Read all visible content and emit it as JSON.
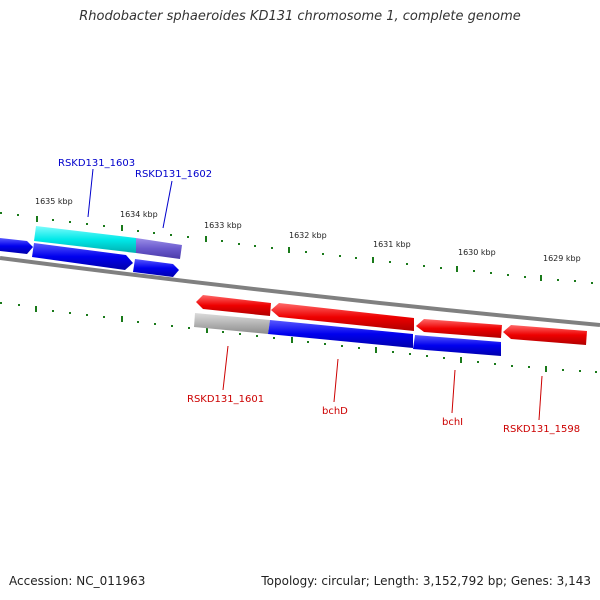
{
  "title": "Rhodobacter sphaeroides KD131 chromosome 1, complete genome",
  "footer": {
    "accession": "Accession: NC_011963",
    "summary": "Topology: circular; Length: 3,152,792 bp; Genes: 3,143"
  },
  "colors": {
    "backbone": "#808080",
    "tick": "#1a7a1a",
    "cds_forward_top": "#0000ee",
    "cds_reverse_red": "#ee0000",
    "highlight_cyan": "#00e8e8",
    "highlight_purple": "#6a5acd",
    "pseudo_gray": "#b4b4b4",
    "label_blue": "#0000cc",
    "label_red": "#cc0000",
    "ruler_text": "#222222"
  },
  "ruler": {
    "labels": [
      "1635 kbp",
      "1634 kbp",
      "1633 kbp",
      "1632 kbp",
      "1631 kbp",
      "1630 kbp",
      "1629 kbp"
    ]
  },
  "genes": [
    {
      "label": "RSKD131_1603",
      "color": "blue"
    },
    {
      "label": "RSKD131_1602",
      "color": "blue"
    },
    {
      "label": "RSKD131_1601",
      "color": "red"
    },
    {
      "label": "bchD",
      "color": "red"
    },
    {
      "label": "bchI",
      "color": "red"
    },
    {
      "label": "RSKD131_1598",
      "color": "red"
    }
  ]
}
